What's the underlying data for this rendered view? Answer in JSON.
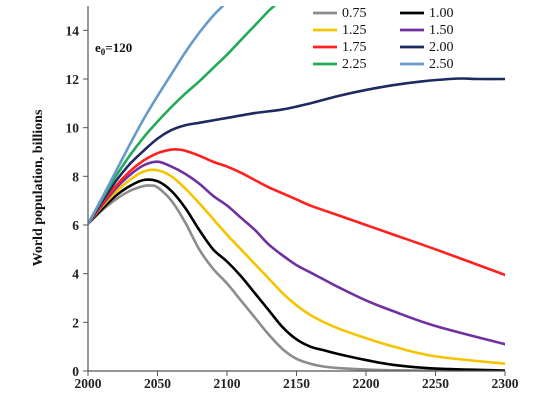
{
  "chart_data": {
    "type": "line",
    "title": "",
    "xlabel": "",
    "ylabel": "World population, billions",
    "annotation": {
      "base": "e",
      "sub": "0",
      "rest": "=120"
    },
    "xlim": [
      2000,
      2300
    ],
    "ylim": [
      0,
      15
    ],
    "x_ticks": [
      2000,
      2050,
      2100,
      2150,
      2200,
      2250,
      2300
    ],
    "y_ticks": [
      0,
      2,
      4,
      6,
      8,
      10,
      12,
      14
    ],
    "grid": false,
    "legend_position": "top-right",
    "series": [
      {
        "name": "0.75",
        "color": "#8c8c8c",
        "x": [
          2000,
          2010,
          2020,
          2030,
          2040,
          2045,
          2050,
          2060,
          2070,
          2080,
          2090,
          2100,
          2110,
          2120,
          2130,
          2140,
          2150,
          2160,
          2170,
          2180,
          2200,
          2220,
          2250,
          2300
        ],
        "y": [
          6.05,
          6.6,
          7.05,
          7.4,
          7.6,
          7.62,
          7.55,
          7.0,
          6.1,
          5.0,
          4.2,
          3.6,
          2.9,
          2.2,
          1.5,
          0.9,
          0.5,
          0.3,
          0.18,
          0.12,
          0.06,
          0.03,
          0.01,
          0.0
        ]
      },
      {
        "name": "1.00",
        "color": "#000000",
        "x": [
          2000,
          2010,
          2020,
          2030,
          2040,
          2050,
          2060,
          2070,
          2080,
          2090,
          2100,
          2110,
          2120,
          2130,
          2140,
          2150,
          2160,
          2170,
          2180,
          2200,
          2220,
          2250,
          2300
        ],
        "y": [
          6.05,
          6.65,
          7.2,
          7.6,
          7.85,
          7.8,
          7.4,
          6.7,
          5.8,
          5.0,
          4.5,
          3.9,
          3.2,
          2.5,
          1.8,
          1.3,
          1.0,
          0.85,
          0.7,
          0.45,
          0.25,
          0.1,
          0.02
        ]
      },
      {
        "name": "1.25",
        "color": "#f5c400",
        "x": [
          2000,
          2010,
          2020,
          2030,
          2040,
          2050,
          2060,
          2070,
          2080,
          2090,
          2100,
          2110,
          2120,
          2130,
          2140,
          2150,
          2160,
          2170,
          2180,
          2200,
          2220,
          2250,
          2300
        ],
        "y": [
          6.05,
          6.75,
          7.35,
          7.85,
          8.2,
          8.25,
          8.0,
          7.5,
          6.9,
          6.25,
          5.6,
          5.0,
          4.4,
          3.8,
          3.2,
          2.7,
          2.3,
          2.0,
          1.75,
          1.35,
          1.0,
          0.6,
          0.3
        ]
      },
      {
        "name": "1.50",
        "color": "#7030a0",
        "x": [
          2000,
          2010,
          2020,
          2030,
          2040,
          2050,
          2060,
          2070,
          2080,
          2090,
          2100,
          2110,
          2120,
          2130,
          2140,
          2150,
          2160,
          2170,
          2180,
          2200,
          2220,
          2250,
          2300
        ],
        "y": [
          6.05,
          6.8,
          7.5,
          8.05,
          8.45,
          8.6,
          8.4,
          8.1,
          7.7,
          7.2,
          6.8,
          6.3,
          5.8,
          5.2,
          4.75,
          4.35,
          4.05,
          3.75,
          3.45,
          2.9,
          2.45,
          1.85,
          1.1
        ]
      },
      {
        "name": "1.75",
        "color": "#ff2020",
        "x": [
          2000,
          2010,
          2020,
          2030,
          2040,
          2050,
          2060,
          2065,
          2070,
          2080,
          2090,
          2100,
          2110,
          2120,
          2130,
          2140,
          2150,
          2160,
          2180,
          2200,
          2220,
          2250,
          2300
        ],
        "y": [
          6.05,
          6.85,
          7.6,
          8.2,
          8.65,
          8.95,
          9.1,
          9.1,
          9.05,
          8.85,
          8.6,
          8.4,
          8.15,
          7.85,
          7.55,
          7.3,
          7.05,
          6.8,
          6.4,
          6.0,
          5.6,
          5.0,
          3.95
        ]
      },
      {
        "name": "2.00",
        "color": "#1f2a60",
        "x": [
          2000,
          2010,
          2020,
          2030,
          2040,
          2050,
          2060,
          2070,
          2080,
          2090,
          2100,
          2120,
          2140,
          2160,
          2180,
          2200,
          2220,
          2240,
          2260,
          2270,
          2280,
          2300
        ],
        "y": [
          6.05,
          6.95,
          7.8,
          8.5,
          9.05,
          9.55,
          9.9,
          10.1,
          10.2,
          10.3,
          10.4,
          10.6,
          10.75,
          11.0,
          11.3,
          11.55,
          11.75,
          11.9,
          12.0,
          12.02,
          12.0,
          12.0
        ]
      },
      {
        "name": "2.25",
        "color": "#22aa55",
        "x": [
          2000,
          2010,
          2020,
          2030,
          2040,
          2050,
          2060,
          2070,
          2080,
          2090,
          2100,
          2110,
          2120,
          2130,
          2134
        ],
        "y": [
          6.05,
          7.05,
          8.0,
          8.85,
          9.6,
          10.25,
          10.85,
          11.4,
          11.9,
          12.45,
          13.0,
          13.6,
          14.2,
          14.8,
          15.0
        ]
      },
      {
        "name": "2.50",
        "color": "#6699cc",
        "x": [
          2000,
          2010,
          2020,
          2030,
          2040,
          2050,
          2060,
          2070,
          2080,
          2090,
          2097
        ],
        "y": [
          6.05,
          7.1,
          8.2,
          9.3,
          10.35,
          11.3,
          12.2,
          13.1,
          13.9,
          14.6,
          15.0
        ]
      }
    ]
  }
}
